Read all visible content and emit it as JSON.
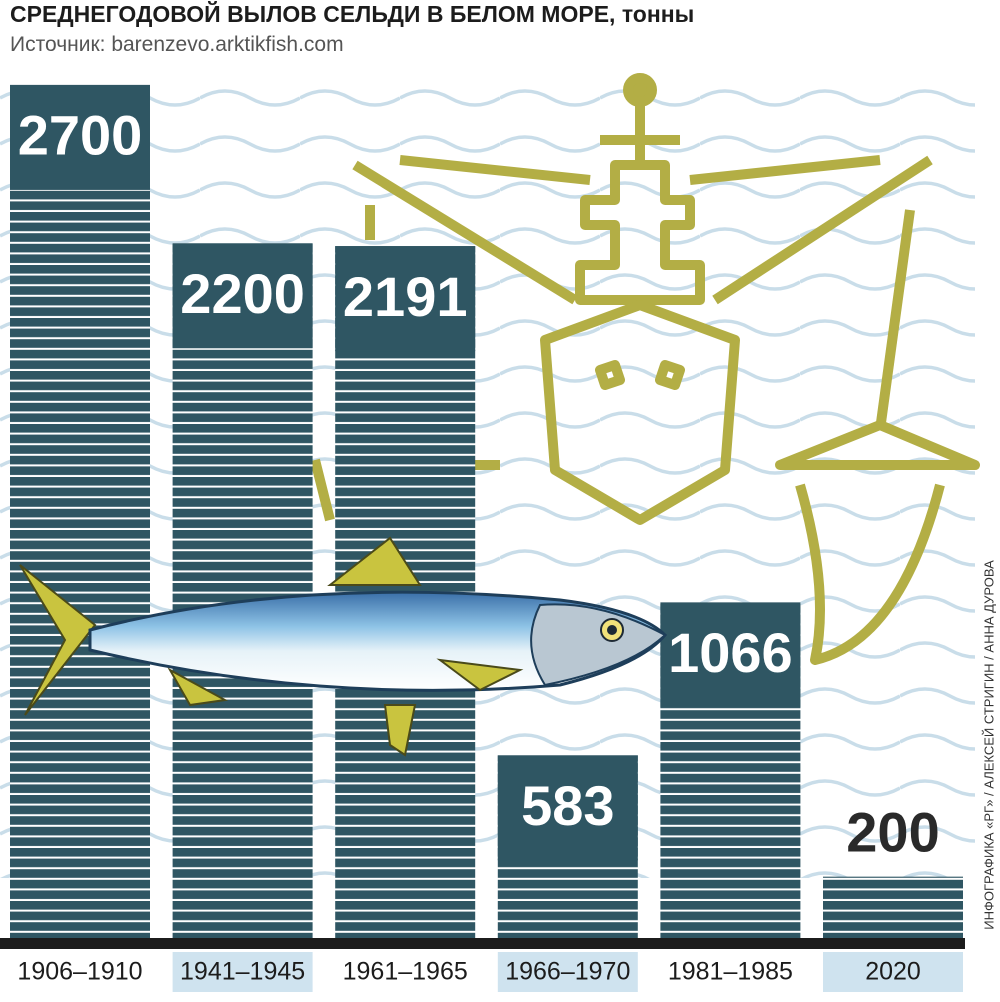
{
  "chart_data": {
    "type": "bar",
    "title": "СРЕДНЕГОДОВОЙ ВЫЛОВ СЕЛЬДИ В БЕЛОМ МОРЕ, тонны",
    "subtitle": "Источник: barenzevo.arktikfish.com",
    "credit": "ИНФОГРАФИКА «РГ» / АЛЕКСЕЙ СТРИГИН / АННА ДУРОВА",
    "categories": [
      "1906–1910",
      "1941–1945",
      "1961–1965",
      "1966–1970",
      "1981–1985",
      "2020"
    ],
    "values": [
      2700,
      2200,
      2191,
      583,
      1066,
      200
    ],
    "color": "#2f5663"
  }
}
